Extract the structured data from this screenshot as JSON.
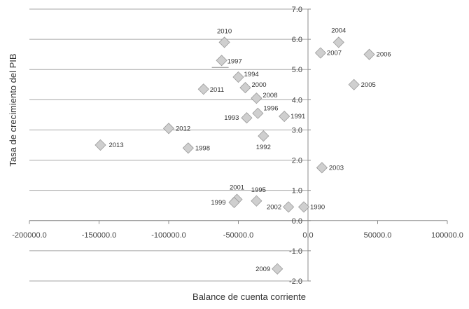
{
  "chart_data": {
    "type": "scatter",
    "xlabel": "Balance de cuenta corriente",
    "ylabel": "Tasa de crecimiento del PIB",
    "xlim": [
      -200000,
      100000
    ],
    "ylim": [
      -2,
      7
    ],
    "x_ticks": [
      -200000,
      -150000,
      -100000,
      -50000,
      0,
      50000,
      100000
    ],
    "x_tick_labels": [
      "-200000.0",
      "-150000.0",
      "-100000.0",
      "-50000.0",
      "0.0",
      "50000.0",
      "100000.0"
    ],
    "y_ticks": [
      -2,
      -1,
      0,
      1,
      2,
      3,
      4,
      5,
      6,
      7
    ],
    "y_tick_labels": [
      "-2.0",
      "-1.0",
      "0.0",
      "1.0",
      "2.0",
      "3.0",
      "4.0",
      "5.0",
      "6.0",
      "7.0"
    ],
    "grid": "horizontal",
    "marker": "diamond",
    "points": [
      {
        "label": "2010",
        "x": -60000,
        "y": 5.9
      },
      {
        "label": "1997",
        "x": -62000,
        "y": 5.3
      },
      {
        "label": "1994",
        "x": -50000,
        "y": 4.75
      },
      {
        "label": "2011",
        "x": -75000,
        "y": 4.35
      },
      {
        "label": "2000",
        "x": -45000,
        "y": 4.4
      },
      {
        "label": "2008",
        "x": -37000,
        "y": 4.05
      },
      {
        "label": "1993",
        "x": -44000,
        "y": 3.4
      },
      {
        "label": "1996",
        "x": -36000,
        "y": 3.55
      },
      {
        "label": "1991",
        "x": -17000,
        "y": 3.45
      },
      {
        "label": "2012",
        "x": -100000,
        "y": 3.05
      },
      {
        "label": "1992",
        "x": -32000,
        "y": 2.8
      },
      {
        "label": "1998",
        "x": -86000,
        "y": 2.4
      },
      {
        "label": "2013",
        "x": -149000,
        "y": 2.5
      },
      {
        "label": "2004",
        "x": 22000,
        "y": 5.9
      },
      {
        "label": "2007",
        "x": 9000,
        "y": 5.55
      },
      {
        "label": "2006",
        "x": 44000,
        "y": 5.5
      },
      {
        "label": "2005",
        "x": 33000,
        "y": 4.5
      },
      {
        "label": "2003",
        "x": 10000,
        "y": 1.75
      },
      {
        "label": "2001",
        "x": -51000,
        "y": 0.7
      },
      {
        "label": "1999",
        "x": -53000,
        "y": 0.6
      },
      {
        "label": "1995",
        "x": -37000,
        "y": 0.65
      },
      {
        "label": "2002",
        "x": -14000,
        "y": 0.45
      },
      {
        "label": "1990",
        "x": -3000,
        "y": 0.45
      },
      {
        "label": "2009",
        "x": -22000,
        "y": -1.6
      }
    ]
  }
}
